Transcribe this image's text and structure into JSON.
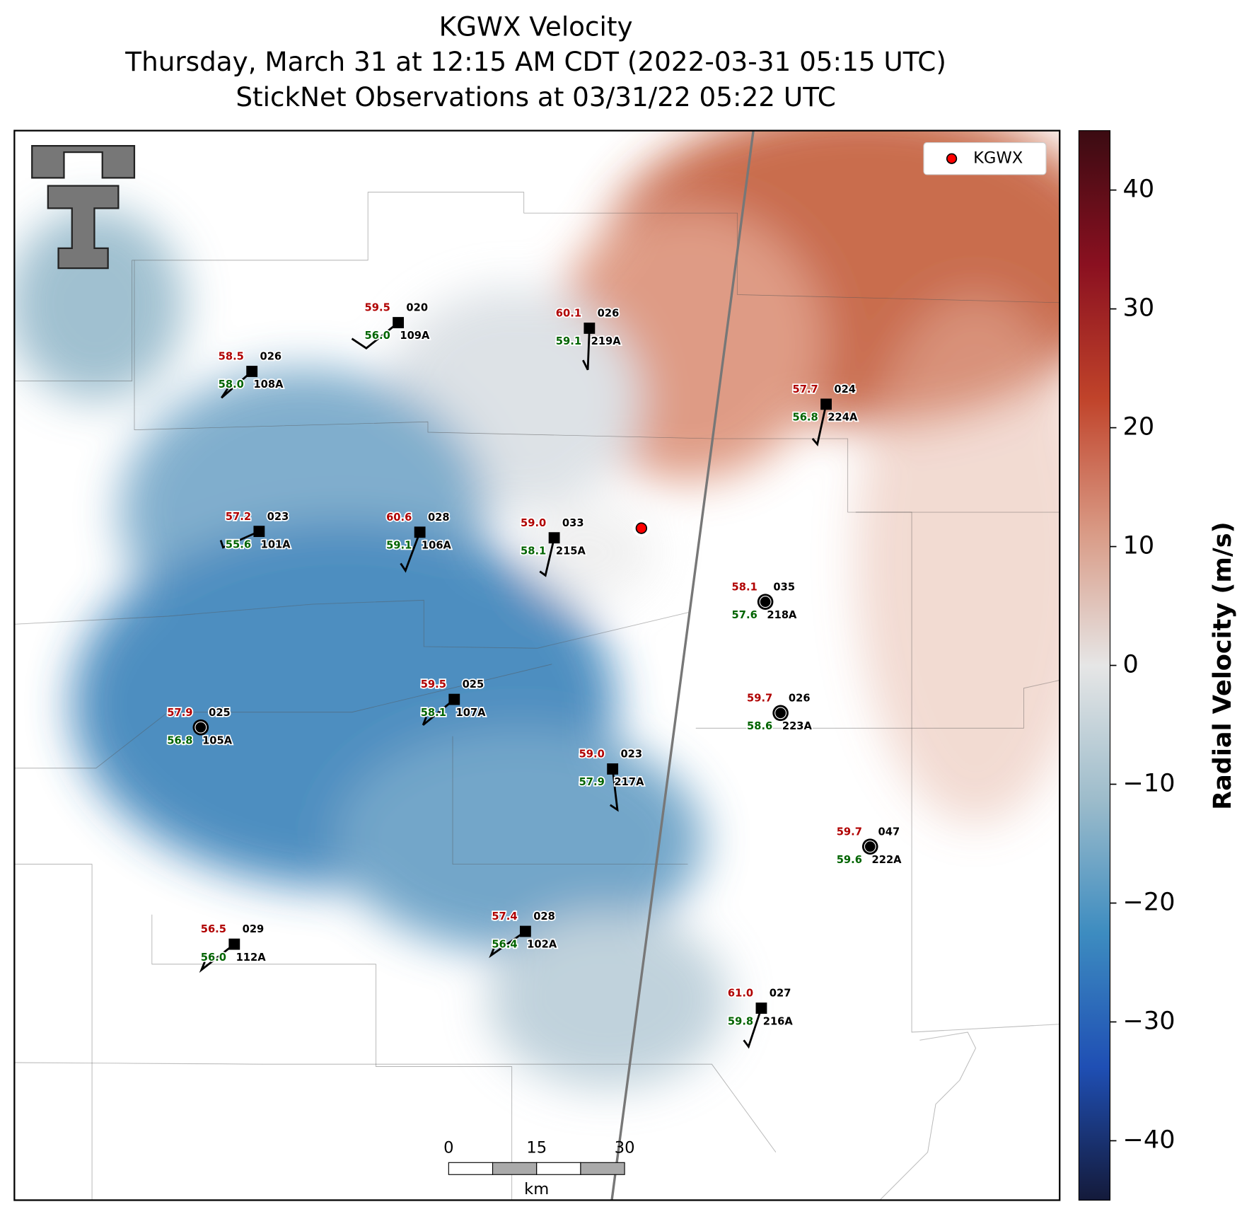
{
  "title": [
    "KGWX Velocity",
    "Thursday, March 31 at 12:15 AM CDT (2022-03-31 05:15 UTC)",
    "StickNet Observations at 03/31/22 05:22 UTC"
  ],
  "legend": "KGWX",
  "colorbar": {
    "label": "Radial Velocity (m/s)",
    "lim": [
      -45,
      45
    ],
    "ticks": [
      {
        "value": -40,
        "label": "−40"
      },
      {
        "value": -30,
        "label": "−30"
      },
      {
        "value": -20,
        "label": "−20"
      },
      {
        "value": -10,
        "label": "−10"
      },
      0,
      10,
      20,
      30,
      40
    ],
    "colors": [
      "#141a3a",
      "#1f4fb4",
      "#3d8cc0",
      "#9dbccb",
      "#e6e6e6",
      "#d99a85",
      "#c0432a",
      "#8a1020",
      "#3b0b12"
    ]
  },
  "scale_bar": {
    "ticks": [
      0,
      15,
      30
    ],
    "unit": "km"
  },
  "stations": [
    {
      "id": "109A",
      "temperature": "59.5",
      "dewpoint": "56.0",
      "wind_direction": "020"
    },
    {
      "id": "219A",
      "temperature": "60.1",
      "dewpoint": "59.1",
      "wind_direction": "026"
    },
    {
      "id": "108A",
      "temperature": "58.5",
      "dewpoint": "58.0",
      "wind_direction": "026"
    },
    {
      "id": "224A",
      "temperature": "57.7",
      "dewpoint": "56.8",
      "wind_direction": "024"
    },
    {
      "id": "101A",
      "temperature": "57.2",
      "dewpoint": "55.6",
      "wind_direction": "023"
    },
    {
      "id": "106A",
      "temperature": "60.6",
      "dewpoint": "59.1",
      "wind_direction": "028"
    },
    {
      "id": "215A",
      "temperature": "59.0",
      "dewpoint": "58.1",
      "wind_direction": "033"
    },
    {
      "id": "218A",
      "temperature": "58.1",
      "dewpoint": "57.6",
      "wind_direction": "035"
    },
    {
      "id": "107A",
      "temperature": "59.5",
      "dewpoint": "58.1",
      "wind_direction": "025"
    },
    {
      "id": "105A",
      "temperature": "57.9",
      "dewpoint": "56.8",
      "wind_direction": "025"
    },
    {
      "id": "223A",
      "temperature": "59.7",
      "dewpoint": "58.6",
      "wind_direction": "026"
    },
    {
      "id": "217A",
      "temperature": "59.0",
      "dewpoint": "57.9",
      "wind_direction": "023"
    },
    {
      "id": "222A",
      "temperature": "59.7",
      "dewpoint": "59.6",
      "wind_direction": "047"
    },
    {
      "id": "102A",
      "temperature": "57.4",
      "dewpoint": "56.4",
      "wind_direction": "028"
    },
    {
      "id": "112A",
      "temperature": "56.5",
      "dewpoint": "56.0",
      "wind_direction": "029"
    },
    {
      "id": "216A",
      "temperature": "61.0",
      "dewpoint": "59.8",
      "wind_direction": "027"
    }
  ]
}
